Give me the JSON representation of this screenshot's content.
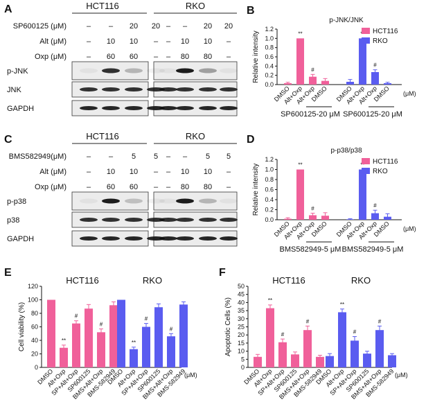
{
  "panels": {
    "A": {
      "letter": "A",
      "cell_lines": [
        "HCT116",
        "RKO"
      ],
      "rows": [
        {
          "label": "SP600125 (μM)",
          "HCT116": [
            "–",
            "–",
            "20",
            "20"
          ],
          "RKO": [
            "–",
            "–",
            "20",
            "20"
          ]
        },
        {
          "label": "Alt (μM)",
          "HCT116": [
            "–",
            "10",
            "10",
            "–"
          ],
          "RKO": [
            "–",
            "10",
            "10",
            "–"
          ]
        },
        {
          "label": "Oxp (μM)",
          "HCT116": [
            "–",
            "60",
            "60",
            "–"
          ],
          "RKO": [
            "–",
            "80",
            "80",
            "–"
          ]
        }
      ],
      "blots": [
        "p-JNK",
        "JNK",
        "GAPDH"
      ]
    },
    "C": {
      "letter": "C",
      "cell_lines": [
        "HCT116",
        "RKO"
      ],
      "rows": [
        {
          "label": "BMS582949(μM)",
          "HCT116": [
            "–",
            "–",
            "5",
            "5"
          ],
          "RKO": [
            "–",
            "–",
            "5",
            "5"
          ]
        },
        {
          "label": "Alt (μM)",
          "HCT116": [
            "–",
            "10",
            "10",
            "–"
          ],
          "RKO": [
            "–",
            "10",
            "10",
            "–"
          ]
        },
        {
          "label": "Oxp (μM)",
          "HCT116": [
            "–",
            "60",
            "60",
            "–"
          ],
          "RKO": [
            "–",
            "80",
            "80",
            "–"
          ]
        }
      ],
      "blots": [
        "p-p38",
        "p38",
        "GAPDH"
      ]
    },
    "B": {
      "letter": "B",
      "under_labels": [
        "SP600125-20 μM",
        "SP600125-20 μM"
      ],
      "unit": "(μM)"
    },
    "D": {
      "letter": "D",
      "under_labels": [
        "BMS582949-5 μM",
        "BMS582949-5 μM"
      ],
      "unit": "(μM)"
    },
    "E": {
      "letter": "E",
      "group_titles": [
        "HCT116",
        "RKO"
      ],
      "unit": "(μM)"
    },
    "F": {
      "letter": "F",
      "group_titles": [
        "HCT116",
        "RKO"
      ],
      "unit": "(μM)"
    }
  },
  "colors": {
    "hct116": "#f0609a",
    "rko": "#5a5cf0"
  },
  "chart_data": [
    {
      "id": "B",
      "type": "bar",
      "title": "p-JNK/JNK",
      "ylabel": "Relative intensity",
      "xlabel": "",
      "ylim": [
        0,
        1.2
      ],
      "yticks": [
        0.0,
        0.2,
        0.4,
        0.6,
        0.8,
        1.0,
        1.2
      ],
      "categories": [
        "DMSO",
        "Alt+Oxp",
        "Alt+Oxp",
        "DMSO"
      ],
      "series": [
        {
          "name": "HCT116",
          "values": [
            0.03,
            1.0,
            0.17,
            0.08
          ],
          "errors": [
            0.02,
            0.0,
            0.05,
            0.05
          ],
          "marks": [
            "",
            "**",
            "#",
            ""
          ]
        },
        {
          "name": "RKO",
          "values": [
            0.06,
            1.0,
            0.27,
            0.03
          ],
          "errors": [
            0.05,
            0.0,
            0.05,
            0.02
          ],
          "marks": [
            "",
            "**",
            "#",
            ""
          ]
        }
      ],
      "legend": "top-right"
    },
    {
      "id": "D",
      "type": "bar",
      "title": "p-p38/p38",
      "ylabel": "Relative intensity",
      "xlabel": "",
      "ylim": [
        0,
        1.2
      ],
      "yticks": [
        0.0,
        0.2,
        0.4,
        0.6,
        0.8,
        1.0,
        1.2
      ],
      "categories": [
        "DMSO",
        "Alt+Oxp",
        "Alt+Oxp",
        "DMSO"
      ],
      "series": [
        {
          "name": "HCT116",
          "values": [
            0.02,
            1.0,
            0.09,
            0.08
          ],
          "errors": [
            0.02,
            0.0,
            0.04,
            0.06
          ],
          "marks": [
            "",
            "**",
            "#",
            ""
          ]
        },
        {
          "name": "RKO",
          "values": [
            0.01,
            1.0,
            0.13,
            0.06
          ],
          "errors": [
            0.01,
            0.0,
            0.06,
            0.06
          ],
          "marks": [
            "",
            "**",
            "#",
            ""
          ]
        }
      ],
      "legend": "top-right"
    },
    {
      "id": "E",
      "type": "bar",
      "title": "",
      "ylabel": "Cell viability (%)",
      "xlabel": "",
      "ylim": [
        0,
        120
      ],
      "yticks": [
        0,
        20,
        40,
        60,
        80,
        100,
        120
      ],
      "categories": [
        "DMSO",
        "Alt+Oxp",
        "SP+Alt+Oxp",
        "SP600125",
        "BMS+Alt+Oxp",
        "BMS-582949"
      ],
      "series": [
        {
          "name": "HCT116",
          "values": [
            100,
            29,
            65,
            87,
            52,
            92
          ],
          "errors": [
            0,
            4,
            4,
            6,
            5,
            5
          ],
          "marks": [
            "",
            "**",
            "#",
            "",
            "#",
            ""
          ]
        },
        {
          "name": "RKO",
          "values": [
            100,
            27,
            60,
            89,
            46,
            93
          ],
          "errors": [
            0,
            3,
            5,
            5,
            4,
            4
          ],
          "marks": [
            "",
            "**",
            "#",
            "",
            "#",
            ""
          ]
        }
      ]
    },
    {
      "id": "F",
      "type": "bar",
      "title": "",
      "ylabel": "Apoptotic Cells (%)",
      "xlabel": "",
      "ylim": [
        0,
        50
      ],
      "yticks": [
        0,
        5,
        10,
        15,
        20,
        25,
        30,
        35,
        40,
        45,
        50
      ],
      "categories": [
        "DMSO",
        "Alt+Oxp",
        "SP+Alt+Oxp",
        "SP600125",
        "BMS+Alt+Oxp",
        "BMS-582949"
      ],
      "series": [
        {
          "name": "HCT116",
          "values": [
            6.5,
            36.5,
            15.5,
            8,
            23,
            6.5
          ],
          "errors": [
            1.5,
            2,
            2,
            1.5,
            2.5,
            1
          ],
          "marks": [
            "",
            "**",
            "#",
            "",
            "#",
            ""
          ]
        },
        {
          "name": "RKO",
          "values": [
            7,
            34,
            16.5,
            8.5,
            23,
            7.5
          ],
          "errors": [
            1.5,
            2,
            2.5,
            1.5,
            2.5,
            1
          ],
          "marks": [
            "",
            "**",
            "#",
            "",
            "#",
            ""
          ]
        }
      ]
    }
  ]
}
